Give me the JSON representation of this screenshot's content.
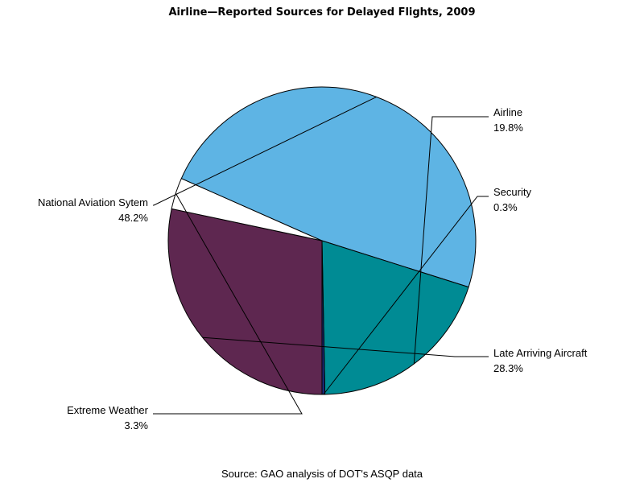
{
  "chart_data": {
    "type": "pie",
    "title": "Airline—Reported Sources for Delayed Flights, 2009",
    "source": "Source: GAO analysis of DOT's ASQP data",
    "slices": [
      {
        "label": "Late Arriving Aircraft",
        "value": 28.3,
        "value_label": "28.3%",
        "color": "#5e2750"
      },
      {
        "label": "Extreme Weather",
        "value": 3.3,
        "value_label": "3.3%",
        "color": "#ffffff"
      },
      {
        "label": "National Aviation Sytem",
        "value": 48.2,
        "value_label": "48.2%",
        "color": "#5eb4e4"
      },
      {
        "label": "Airline",
        "value": 19.8,
        "value_label": "19.8%",
        "color": "#008b94"
      },
      {
        "label": "Security",
        "value": 0.3,
        "value_label": "0.3%",
        "color": "#1c2a78"
      }
    ]
  }
}
